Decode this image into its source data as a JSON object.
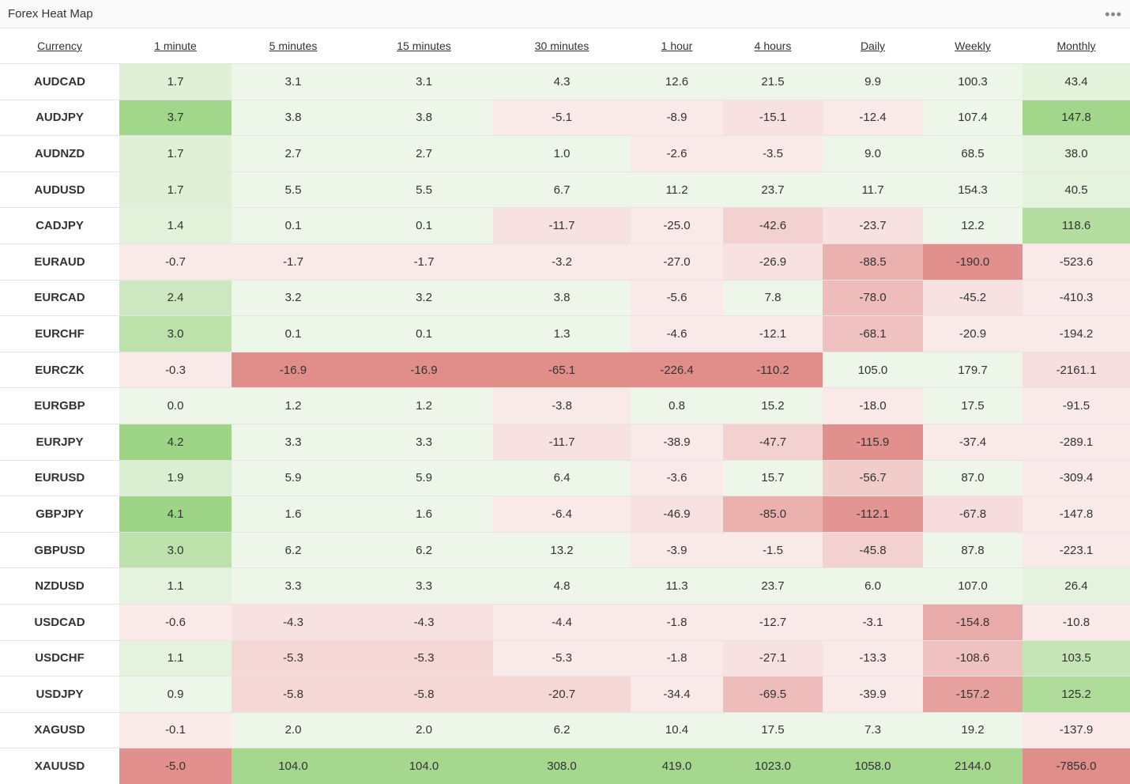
{
  "widget": {
    "title": "Forex Heat Map",
    "menu_icon": "more-horizontal-icon"
  },
  "columns": [
    "Currency",
    "1 minute",
    "5 minutes",
    "15 minutes",
    "30 minutes",
    "1 hour",
    "4 hours",
    "Daily",
    "Weekly",
    "Monthly"
  ],
  "colors": {
    "positive_max": "#9ed485",
    "negative_max": "#df8582",
    "positive_min": "#f4f9f1",
    "negative_min": "#fcf2f2"
  },
  "rows": [
    {
      "pair": "AUDCAD",
      "values": [
        "1.7",
        "3.1",
        "3.1",
        "4.3",
        "12.6",
        "21.5",
        "9.9",
        "100.3",
        "43.4"
      ]
    },
    {
      "pair": "AUDJPY",
      "values": [
        "3.7",
        "3.8",
        "3.8",
        "-5.1",
        "-8.9",
        "-15.1",
        "-12.4",
        "107.4",
        "147.8"
      ]
    },
    {
      "pair": "AUDNZD",
      "values": [
        "1.7",
        "2.7",
        "2.7",
        "1.0",
        "-2.6",
        "-3.5",
        "9.0",
        "68.5",
        "38.0"
      ]
    },
    {
      "pair": "AUDUSD",
      "values": [
        "1.7",
        "5.5",
        "5.5",
        "6.7",
        "11.2",
        "23.7",
        "11.7",
        "154.3",
        "40.5"
      ]
    },
    {
      "pair": "CADJPY",
      "values": [
        "1.4",
        "0.1",
        "0.1",
        "-11.7",
        "-25.0",
        "-42.6",
        "-23.7",
        "12.2",
        "118.6"
      ]
    },
    {
      "pair": "EURAUD",
      "values": [
        "-0.7",
        "-1.7",
        "-1.7",
        "-3.2",
        "-27.0",
        "-26.9",
        "-88.5",
        "-190.0",
        "-523.6"
      ]
    },
    {
      "pair": "EURCAD",
      "values": [
        "2.4",
        "3.2",
        "3.2",
        "3.8",
        "-5.6",
        "7.8",
        "-78.0",
        "-45.2",
        "-410.3"
      ]
    },
    {
      "pair": "EURCHF",
      "values": [
        "3.0",
        "0.1",
        "0.1",
        "1.3",
        "-4.6",
        "-12.1",
        "-68.1",
        "-20.9",
        "-194.2"
      ]
    },
    {
      "pair": "EURCZK",
      "values": [
        "-0.3",
        "-16.9",
        "-16.9",
        "-65.1",
        "-226.4",
        "-110.2",
        "105.0",
        "179.7",
        "-2161.1"
      ]
    },
    {
      "pair": "EURGBP",
      "values": [
        "0.0",
        "1.2",
        "1.2",
        "-3.8",
        "0.8",
        "15.2",
        "-18.0",
        "17.5",
        "-91.5"
      ]
    },
    {
      "pair": "EURJPY",
      "values": [
        "4.2",
        "3.3",
        "3.3",
        "-11.7",
        "-38.9",
        "-47.7",
        "-115.9",
        "-37.4",
        "-289.1"
      ]
    },
    {
      "pair": "EURUSD",
      "values": [
        "1.9",
        "5.9",
        "5.9",
        "6.4",
        "-3.6",
        "15.7",
        "-56.7",
        "87.0",
        "-309.4"
      ]
    },
    {
      "pair": "GBPJPY",
      "values": [
        "4.1",
        "1.6",
        "1.6",
        "-6.4",
        "-46.9",
        "-85.0",
        "-112.1",
        "-67.8",
        "-147.8"
      ]
    },
    {
      "pair": "GBPUSD",
      "values": [
        "3.0",
        "6.2",
        "6.2",
        "13.2",
        "-3.9",
        "-1.5",
        "-45.8",
        "87.8",
        "-223.1"
      ]
    },
    {
      "pair": "NZDUSD",
      "values": [
        "1.1",
        "3.3",
        "3.3",
        "4.8",
        "11.3",
        "23.7",
        "6.0",
        "107.0",
        "26.4"
      ]
    },
    {
      "pair": "USDCAD",
      "values": [
        "-0.6",
        "-4.3",
        "-4.3",
        "-4.4",
        "-1.8",
        "-12.7",
        "-3.1",
        "-154.8",
        "-10.8"
      ]
    },
    {
      "pair": "USDCHF",
      "values": [
        "1.1",
        "-5.3",
        "-5.3",
        "-5.3",
        "-1.8",
        "-27.1",
        "-13.3",
        "-108.6",
        "103.5"
      ]
    },
    {
      "pair": "USDJPY",
      "values": [
        "0.9",
        "-5.8",
        "-5.8",
        "-20.7",
        "-34.4",
        "-69.5",
        "-39.9",
        "-157.2",
        "125.2"
      ]
    },
    {
      "pair": "XAGUSD",
      "values": [
        "-0.1",
        "2.0",
        "2.0",
        "6.2",
        "10.4",
        "17.5",
        "7.3",
        "19.2",
        "-137.9"
      ]
    },
    {
      "pair": "XAUUSD",
      "values": [
        "-5.0",
        "104.0",
        "104.0",
        "308.0",
        "419.0",
        "1023.0",
        "1058.0",
        "2144.0",
        "-7856.0"
      ]
    }
  ],
  "cell_strength": [
    [
      0.25,
      0.08,
      0.08,
      0.08,
      0.08,
      0.08,
      0.08,
      0.08,
      0.2
    ],
    [
      0.95,
      0.08,
      0.08,
      0.08,
      0.08,
      0.15,
      0.08,
      0.08,
      0.95
    ],
    [
      0.25,
      0.08,
      0.08,
      0.08,
      0.08,
      0.08,
      0.08,
      0.08,
      0.18
    ],
    [
      0.25,
      0.08,
      0.08,
      0.08,
      0.08,
      0.08,
      0.08,
      0.08,
      0.18
    ],
    [
      0.2,
      0.08,
      0.08,
      0.15,
      0.08,
      0.3,
      0.15,
      0.08,
      0.75
    ],
    [
      0.08,
      0.08,
      0.08,
      0.08,
      0.08,
      0.15,
      0.6,
      0.9,
      0.08
    ],
    [
      0.45,
      0.08,
      0.08,
      0.08,
      0.08,
      0.08,
      0.5,
      0.15,
      0.08
    ],
    [
      0.65,
      0.08,
      0.08,
      0.08,
      0.08,
      0.08,
      0.45,
      0.08,
      0.08
    ],
    [
      0.08,
      0.92,
      0.92,
      0.92,
      0.92,
      0.92,
      0.08,
      0.08,
      0.18
    ],
    [
      0.08,
      0.08,
      0.08,
      0.08,
      0.08,
      0.08,
      0.08,
      0.08,
      0.08
    ],
    [
      1.0,
      0.08,
      0.08,
      0.15,
      0.08,
      0.3,
      0.9,
      0.08,
      0.08
    ],
    [
      0.3,
      0.08,
      0.08,
      0.08,
      0.08,
      0.08,
      0.35,
      0.08,
      0.08
    ],
    [
      1.0,
      0.08,
      0.08,
      0.08,
      0.15,
      0.6,
      0.85,
      0.2,
      0.08
    ],
    [
      0.65,
      0.08,
      0.08,
      0.08,
      0.08,
      0.08,
      0.3,
      0.08,
      0.08
    ],
    [
      0.18,
      0.08,
      0.08,
      0.08,
      0.08,
      0.08,
      0.08,
      0.08,
      0.18
    ],
    [
      0.08,
      0.15,
      0.15,
      0.08,
      0.08,
      0.08,
      0.08,
      0.65,
      0.08
    ],
    [
      0.18,
      0.25,
      0.25,
      0.08,
      0.08,
      0.15,
      0.08,
      0.45,
      0.55
    ],
    [
      0.08,
      0.25,
      0.25,
      0.25,
      0.08,
      0.5,
      0.08,
      0.75,
      0.8
    ],
    [
      0.08,
      0.08,
      0.08,
      0.08,
      0.08,
      0.08,
      0.08,
      0.08,
      0.08
    ],
    [
      0.9,
      0.92,
      0.92,
      0.92,
      0.92,
      0.92,
      0.92,
      0.92,
      0.92
    ]
  ]
}
